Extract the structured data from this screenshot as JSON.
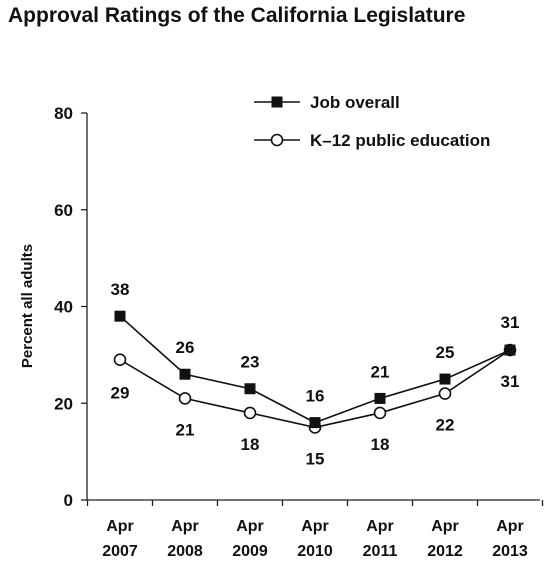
{
  "chart_data": {
    "type": "line",
    "title": "Approval Ratings of the California Legislature",
    "xlabel": "",
    "ylabel": "Percent all adults",
    "ylim": [
      0,
      80
    ],
    "yticks": [
      0,
      20,
      40,
      60,
      80
    ],
    "grid": false,
    "legend_position": "top-right",
    "categories": [
      [
        "Apr",
        "2007"
      ],
      [
        "Apr",
        "2008"
      ],
      [
        "Apr",
        "2009"
      ],
      [
        "Apr",
        "2010"
      ],
      [
        "Apr",
        "2011"
      ],
      [
        "Apr",
        "2012"
      ],
      [
        "Apr",
        "2013"
      ]
    ],
    "series": [
      {
        "name": "Job overall",
        "marker": "filled-square",
        "color": "#111111",
        "values": [
          38,
          26,
          23,
          16,
          21,
          25,
          31
        ]
      },
      {
        "name": "K–12 public education",
        "marker": "hollow-circle",
        "color": "#111111",
        "values": [
          29,
          21,
          18,
          15,
          18,
          22,
          31
        ]
      }
    ]
  }
}
